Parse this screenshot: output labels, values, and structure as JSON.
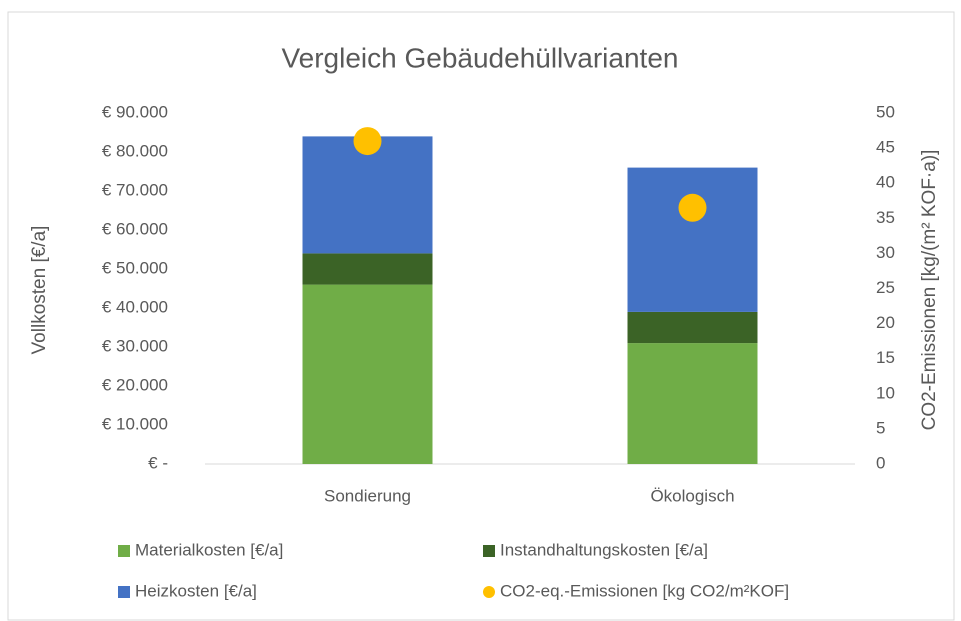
{
  "chart_data": {
    "type": "bar",
    "stacked": true,
    "title": "Vergleich Gebäudehüllvarianten",
    "ylabel": "Vollkosten [€/a]",
    "y2label": "CO2-Emissionen [kg/(m² KOF·a)]",
    "categories": [
      "Sondierung",
      "Ökologisch"
    ],
    "series": [
      {
        "name": "Materialkosten [€/a]",
        "color": "#70ad47",
        "values": [
          46000,
          31000
        ]
      },
      {
        "name": "Instandhaltungskosten [€/a]",
        "color": "#3b6326",
        "values": [
          8000,
          8000
        ]
      },
      {
        "name": "Heizkosten [€/a]",
        "color": "#4472c4",
        "values": [
          30000,
          37000
        ]
      },
      {
        "name": "CO2-eq.-Emissionen [kg CO2/m²KOF]",
        "color": "#ffc000",
        "type": "scatter",
        "axis": "y2",
        "values": [
          46,
          36.5
        ]
      }
    ],
    "ylim": [
      0,
      90000
    ],
    "yticks": [
      {
        "value": 0,
        "label": "€ -"
      },
      {
        "value": 10000,
        "label": "€ 10.000"
      },
      {
        "value": 20000,
        "label": "€ 20.000"
      },
      {
        "value": 30000,
        "label": "€ 30.000"
      },
      {
        "value": 40000,
        "label": "€ 40.000"
      },
      {
        "value": 50000,
        "label": "€ 50.000"
      },
      {
        "value": 60000,
        "label": "€ 60.000"
      },
      {
        "value": 70000,
        "label": "€ 70.000"
      },
      {
        "value": 80000,
        "label": "€ 80.000"
      },
      {
        "value": 90000,
        "label": "€ 90.000"
      }
    ],
    "y2lim": [
      0,
      50
    ],
    "y2ticks": [
      0,
      5,
      10,
      15,
      20,
      25,
      30,
      35,
      40,
      45,
      50
    ],
    "grid": false,
    "legend": "bottom"
  }
}
